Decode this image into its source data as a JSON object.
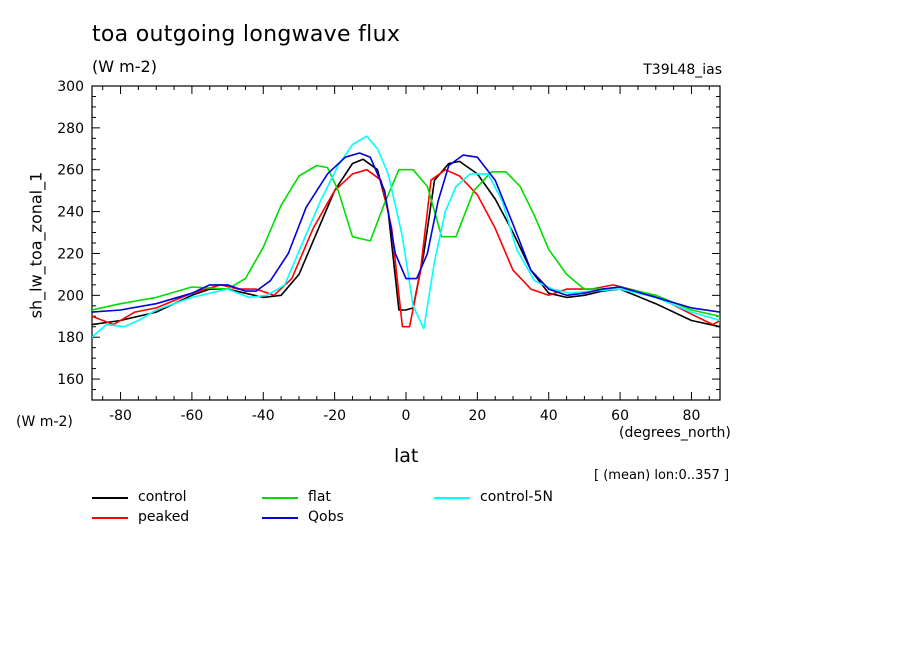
{
  "header": {
    "title": "toa outgoing longwave flux",
    "units": "(W m-2)",
    "run": "T39L48_ias",
    "note": "[ (mean) lon:0..357 ]"
  },
  "chart_data": {
    "type": "line",
    "ylabel": "sh_lw_toa_zonal_1",
    "yunits": "(W m-2)",
    "xlabel": "lat",
    "xunits": "(degrees_north)",
    "xlim": [
      -88,
      88
    ],
    "ylim": [
      150,
      300
    ],
    "xticks": [
      -80,
      -60,
      -40,
      -20,
      0,
      20,
      40,
      60,
      80
    ],
    "yticks": [
      160,
      180,
      200,
      220,
      240,
      260,
      280,
      300
    ],
    "grid": false,
    "legend_position": "bottom",
    "series": [
      {
        "name": "control",
        "color": "#000000",
        "x": [
          -88,
          -80,
          -70,
          -60,
          -55,
          -50,
          -45,
          -40,
          -35,
          -30,
          -25,
          -20,
          -15,
          -12,
          -8,
          -5,
          -2,
          0,
          2,
          5,
          8,
          12,
          15,
          20,
          25,
          30,
          35,
          40,
          45,
          50,
          55,
          60,
          70,
          80,
          88
        ],
        "y": [
          186,
          188,
          192,
          200,
          203,
          203,
          201,
          199,
          200,
          210,
          230,
          250,
          263,
          265,
          260,
          240,
          193,
          193,
          194,
          220,
          255,
          263,
          264,
          258,
          246,
          230,
          212,
          201,
          199,
          200,
          202,
          203,
          196,
          188,
          185
        ]
      },
      {
        "name": "peaked",
        "color": "#ff0000",
        "x": [
          -88,
          -82,
          -76,
          -70,
          -60,
          -52,
          -47,
          -42,
          -37,
          -32,
          -26,
          -20,
          -15,
          -11,
          -7,
          -4,
          -1,
          1,
          4,
          7,
          11,
          15,
          20,
          25,
          30,
          35,
          40,
          45,
          52,
          58,
          65,
          72,
          80,
          86,
          88
        ],
        "y": [
          190,
          186,
          192,
          194,
          201,
          205,
          203,
          203,
          200,
          208,
          232,
          250,
          258,
          260,
          255,
          232,
          185,
          185,
          211,
          255,
          260,
          257,
          248,
          232,
          212,
          203,
          200,
          203,
          203,
          205,
          202,
          198,
          191,
          186,
          188
        ]
      },
      {
        "name": "flat",
        "color": "#00dd00",
        "x": [
          -88,
          -80,
          -70,
          -60,
          -50,
          -45,
          -40,
          -35,
          -30,
          -25,
          -22,
          -19,
          -15,
          -10,
          -6,
          -2,
          2,
          6,
          10,
          14,
          19,
          24,
          28,
          32,
          36,
          40,
          45,
          50,
          55,
          60,
          70,
          80,
          88
        ],
        "y": [
          193,
          196,
          199,
          204,
          203,
          208,
          223,
          243,
          257,
          262,
          261,
          250,
          228,
          226,
          244,
          260,
          260,
          252,
          228,
          228,
          250,
          259,
          259,
          252,
          238,
          222,
          210,
          203,
          203,
          204,
          200,
          193,
          190
        ]
      },
      {
        "name": "control-5N",
        "color": "#00ffff",
        "x": [
          -88,
          -84,
          -79,
          -75,
          -70,
          -60,
          -50,
          -44,
          -39,
          -34,
          -29,
          -24,
          -19,
          -15,
          -11,
          -8,
          -5,
          -1,
          2,
          5,
          8,
          11,
          14,
          18,
          23,
          27,
          31,
          36,
          41,
          46,
          52,
          60,
          70,
          80,
          88
        ],
        "y": [
          180,
          186,
          185,
          188,
          193,
          199,
          203,
          199,
          200,
          205,
          225,
          245,
          262,
          272,
          276,
          270,
          258,
          228,
          195,
          184,
          216,
          240,
          252,
          258,
          258,
          245,
          222,
          207,
          203,
          201,
          202,
          203,
          199,
          192,
          188
        ]
      },
      {
        "name": "Qobs",
        "color": "#0000dd",
        "x": [
          -88,
          -80,
          -70,
          -60,
          -55,
          -50,
          -45,
          -42,
          -38,
          -33,
          -28,
          -22,
          -17,
          -13,
          -10,
          -6,
          -3,
          0,
          3,
          6,
          9,
          12,
          16,
          20,
          25,
          30,
          35,
          40,
          45,
          50,
          55,
          60,
          70,
          80,
          88
        ],
        "y": [
          192,
          193,
          196,
          201,
          205,
          205,
          202,
          202,
          207,
          220,
          242,
          258,
          266,
          268,
          266,
          250,
          220,
          208,
          208,
          220,
          245,
          262,
          267,
          266,
          255,
          234,
          212,
          203,
          200,
          201,
          203,
          204,
          199,
          194,
          192
        ]
      }
    ]
  }
}
